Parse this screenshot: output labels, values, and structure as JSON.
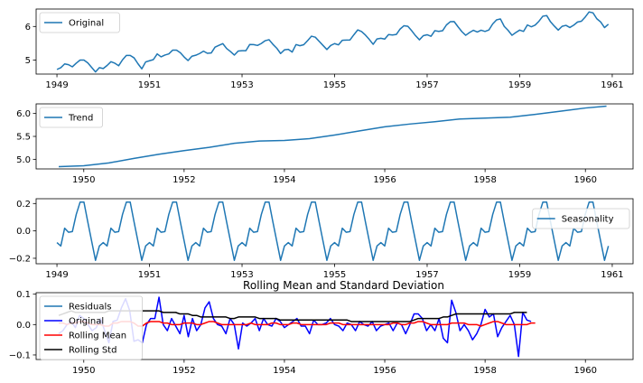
{
  "chart_data": [
    {
      "type": "line",
      "xlim": [
        1948.55,
        1961.45
      ],
      "ylim": [
        4.58,
        6.52
      ],
      "x_ticks": [
        1949,
        1951,
        1953,
        1955,
        1957,
        1959,
        1961
      ],
      "x_tick_labels": [
        "1949",
        "1951",
        "1953",
        "1955",
        "1957",
        "1959",
        "1961"
      ],
      "y_ticks": [
        5,
        6
      ],
      "y_tick_labels": [
        "5",
        "6"
      ],
      "legend_position": "upper-left",
      "series": [
        {
          "name": "Original",
          "color": "#1f77b4",
          "x_start": 1949.0,
          "x_step": 0.0833333,
          "values": [
            4.718,
            4.771,
            4.883,
            4.86,
            4.796,
            4.905,
            4.997,
            4.997,
            4.913,
            4.779,
            4.644,
            4.771,
            4.745,
            4.836,
            4.949,
            4.905,
            4.828,
            5.004,
            5.136,
            5.136,
            5.063,
            4.89,
            4.736,
            4.942,
            4.977,
            5.011,
            5.182,
            5.094,
            5.147,
            5.182,
            5.293,
            5.293,
            5.215,
            5.088,
            4.984,
            5.112,
            5.142,
            5.193,
            5.263,
            5.199,
            5.209,
            5.384,
            5.438,
            5.489,
            5.342,
            5.252,
            5.147,
            5.268,
            5.278,
            5.278,
            5.464,
            5.46,
            5.434,
            5.493,
            5.576,
            5.606,
            5.468,
            5.352,
            5.193,
            5.303,
            5.318,
            5.236,
            5.46,
            5.425,
            5.455,
            5.576,
            5.71,
            5.68,
            5.557,
            5.434,
            5.313,
            5.434,
            5.489,
            5.451,
            5.587,
            5.595,
            5.598,
            5.753,
            5.897,
            5.849,
            5.743,
            5.613,
            5.468,
            5.628,
            5.649,
            5.624,
            5.759,
            5.746,
            5.762,
            5.924,
            6.023,
            6.004,
            5.872,
            5.724,
            5.602,
            5.724,
            5.753,
            5.707,
            5.875,
            5.852,
            5.872,
            6.045,
            6.142,
            6.146,
            5.991,
            5.846,
            5.737,
            5.82,
            5.886,
            5.835,
            5.889,
            5.852,
            5.894,
            6.075,
            6.196,
            6.225,
            6.001,
            5.883,
            5.737,
            5.82,
            5.892,
            5.852,
            6.045,
            5.991,
            6.04,
            6.157,
            6.306,
            6.326,
            6.138,
            6.009,
            5.892,
            6.004,
            6.033,
            5.969,
            6.038,
            6.133,
            6.157,
            6.282,
            6.433,
            6.407,
            6.23,
            6.133,
            5.966,
            6.068
          ]
        }
      ]
    },
    {
      "type": "line",
      "xlim": [
        1949.05,
        1960.95
      ],
      "ylim": [
        4.79,
        6.21
      ],
      "x_ticks": [
        1950,
        1952,
        1954,
        1956,
        1958,
        1960
      ],
      "x_tick_labels": [
        "1950",
        "1952",
        "1954",
        "1956",
        "1958",
        "1960"
      ],
      "y_ticks": [
        5.0,
        5.5,
        6.0
      ],
      "y_tick_labels": [
        "5.0",
        "5.5",
        "6.0"
      ],
      "legend_position": "upper-left",
      "series": [
        {
          "name": "Trend",
          "color": "#1f77b4",
          "x": [
            1949.5,
            1950.0,
            1950.5,
            1951.0,
            1951.5,
            1952.0,
            1952.5,
            1953.0,
            1953.5,
            1954.0,
            1954.5,
            1955.0,
            1955.5,
            1956.0,
            1956.5,
            1957.0,
            1957.5,
            1958.0,
            1958.5,
            1959.0,
            1959.5,
            1960.0,
            1960.42
          ],
          "values": [
            4.84,
            4.86,
            4.92,
            5.02,
            5.11,
            5.19,
            5.26,
            5.35,
            5.4,
            5.41,
            5.45,
            5.53,
            5.62,
            5.71,
            5.77,
            5.82,
            5.88,
            5.9,
            5.92,
            5.98,
            6.05,
            6.12,
            6.16
          ]
        }
      ]
    },
    {
      "type": "line",
      "xlim": [
        1948.55,
        1961.45
      ],
      "ylim": [
        -0.24,
        0.235
      ],
      "x_ticks": [
        1949,
        1951,
        1953,
        1955,
        1957,
        1959,
        1961
      ],
      "x_tick_labels": [
        "1949",
        "1951",
        "1953",
        "1955",
        "1957",
        "1959",
        "1961"
      ],
      "y_ticks": [
        -0.2,
        0.0,
        0.2
      ],
      "y_tick_labels": [
        "−0.2",
        "0.0",
        "0.2"
      ],
      "legend_position": "center-right",
      "series": [
        {
          "name": "Seasonality",
          "color": "#1f77b4",
          "x_start": 1949.0,
          "x_step": 0.0833333,
          "pattern_values": [
            -0.085,
            -0.11,
            0.02,
            -0.01,
            -0.005,
            0.12,
            0.21,
            0.21,
            0.065,
            -0.075,
            -0.215,
            -0.11
          ],
          "repeat": 12
        }
      ]
    },
    {
      "type": "line",
      "title": "Rolling Mean and Standard Deviation",
      "xlim": [
        1949.05,
        1960.95
      ],
      "ylim": [
        -0.115,
        0.105
      ],
      "x_ticks": [
        1950,
        1952,
        1954,
        1956,
        1958,
        1960
      ],
      "x_tick_labels": [
        "1950",
        "1952",
        "1954",
        "1956",
        "1958",
        "1960"
      ],
      "y_ticks": [
        -0.1,
        0.0,
        0.1
      ],
      "y_tick_labels": [
        "−0.1",
        "0.0",
        "0.1"
      ],
      "legend_position": "upper-left",
      "series": [
        {
          "name": "Residuals",
          "color": "#1f77b4",
          "x_start": 1949.5,
          "x_step": 0.0833333,
          "values": []
        },
        {
          "name": "Original",
          "color": "#0000ff",
          "x_start": 1949.5,
          "x_step": 0.0833333,
          "values": [
            -0.03,
            -0.02,
            0.0,
            0.01,
            -0.01,
            0.03,
            0.02,
            0.0,
            -0.02,
            -0.01,
            0.02,
            -0.02,
            -0.06,
            0.01,
            0.015,
            0.055,
            0.085,
            0.045,
            -0.055,
            -0.05,
            -0.06,
            0.0,
            0.02,
            0.02,
            0.09,
            0.0,
            -0.02,
            0.02,
            -0.005,
            -0.03,
            0.03,
            -0.04,
            0.02,
            -0.02,
            0.0,
            0.055,
            0.075,
            0.02,
            0.0,
            -0.005,
            -0.03,
            0.02,
            0.0,
            -0.08,
            0.005,
            -0.005,
            0.005,
            0.02,
            -0.02,
            0.02,
            0.0,
            -0.005,
            0.02,
            0.01,
            -0.01,
            0.0,
            0.01,
            0.02,
            -0.005,
            -0.005,
            -0.03,
            0.015,
            0.0,
            0.0,
            0.005,
            0.02,
            0.0,
            -0.005,
            -0.02,
            0.005,
            0.0,
            -0.02,
            0.01,
            0.0,
            -0.005,
            0.01,
            -0.02,
            -0.005,
            0.0,
            0.005,
            -0.02,
            0.005,
            0.0,
            -0.03,
            0.0,
            0.035,
            0.035,
            0.02,
            -0.02,
            0.0,
            -0.02,
            0.02,
            -0.045,
            -0.06,
            0.08,
            0.04,
            -0.02,
            0.0,
            -0.02,
            -0.05,
            -0.03,
            0.0,
            0.05,
            0.025,
            0.035,
            -0.04,
            -0.01,
            0.01,
            0.03,
            0.0,
            -0.105,
            0.04,
            0.015,
            0.01
          ]
        },
        {
          "name": "Rolling Mean",
          "color": "#ff0000",
          "x_start": 1949.5,
          "x_step": 0.0833333,
          "values": [
            0.005,
            0.005,
            0.0,
            0.005,
            0.005,
            0.01,
            0.01,
            0.005,
            0.0,
            0.0,
            0.0,
            -0.005,
            -0.005,
            0.005,
            0.005,
            0.01,
            0.01,
            0.01,
            0.005,
            -0.005,
            -0.005,
            0.005,
            0.01,
            0.01,
            0.01,
            0.005,
            0.005,
            0.0,
            0.0,
            0.0,
            0.005,
            0.005,
            0.005,
            0.0,
            0.0,
            0.005,
            0.01,
            0.01,
            0.005,
            0.0,
            0.0,
            0.0,
            0.0,
            0.0,
            0.0,
            0.0,
            0.005,
            0.0,
            0.0,
            0.0,
            0.0,
            0.005,
            0.005,
            0.0,
            0.0,
            0.0,
            0.005,
            0.005,
            0.0,
            0.0,
            0.0,
            0.0,
            0.0,
            0.0,
            0.0,
            0.005,
            0.005,
            0.005,
            0.0,
            0.0,
            0.0,
            0.0,
            0.0,
            0.0,
            0.0,
            0.0,
            0.0,
            0.0,
            0.0,
            0.0,
            0.005,
            0.005,
            0.0,
            0.0,
            0.005,
            0.005,
            0.01,
            0.01,
            0.005,
            0.0,
            0.0,
            0.0,
            0.0,
            0.0,
            0.005,
            0.005,
            0.005,
            0.005,
            0.0,
            0.0,
            0.0,
            -0.005,
            0.0,
            0.005,
            0.01,
            0.01,
            0.005,
            0.0,
            0.0,
            0.0,
            0.0,
            0.0,
            0.0,
            0.005,
            0.005
          ]
        },
        {
          "name": "Rolling Std",
          "color": "#000000",
          "x_start": 1949.5,
          "x_step": 0.0833333,
          "values": [
            0.03,
            0.035,
            0.04,
            0.045,
            0.04,
            0.04,
            0.04,
            0.04,
            0.04,
            0.04,
            0.04,
            0.04,
            0.045,
            0.045,
            0.045,
            0.045,
            0.045,
            0.045,
            0.045,
            0.045,
            0.045,
            0.045,
            0.045,
            0.045,
            0.045,
            0.04,
            0.04,
            0.04,
            0.04,
            0.035,
            0.035,
            0.035,
            0.03,
            0.03,
            0.025,
            0.025,
            0.025,
            0.025,
            0.025,
            0.025,
            0.025,
            0.02,
            0.02,
            0.025,
            0.025,
            0.025,
            0.025,
            0.025,
            0.02,
            0.02,
            0.02,
            0.02,
            0.02,
            0.015,
            0.015,
            0.015,
            0.015,
            0.015,
            0.015,
            0.015,
            0.015,
            0.015,
            0.015,
            0.015,
            0.015,
            0.015,
            0.015,
            0.015,
            0.015,
            0.015,
            0.01,
            0.01,
            0.01,
            0.01,
            0.01,
            0.01,
            0.01,
            0.01,
            0.01,
            0.01,
            0.01,
            0.01,
            0.01,
            0.01,
            0.01,
            0.015,
            0.02,
            0.02,
            0.02,
            0.02,
            0.02,
            0.02,
            0.025,
            0.025,
            0.03,
            0.035,
            0.035,
            0.035,
            0.035,
            0.035,
            0.035,
            0.035,
            0.035,
            0.035,
            0.035,
            0.035,
            0.035,
            0.035,
            0.035,
            0.04,
            0.04,
            0.04,
            0.04
          ]
        }
      ]
    }
  ]
}
